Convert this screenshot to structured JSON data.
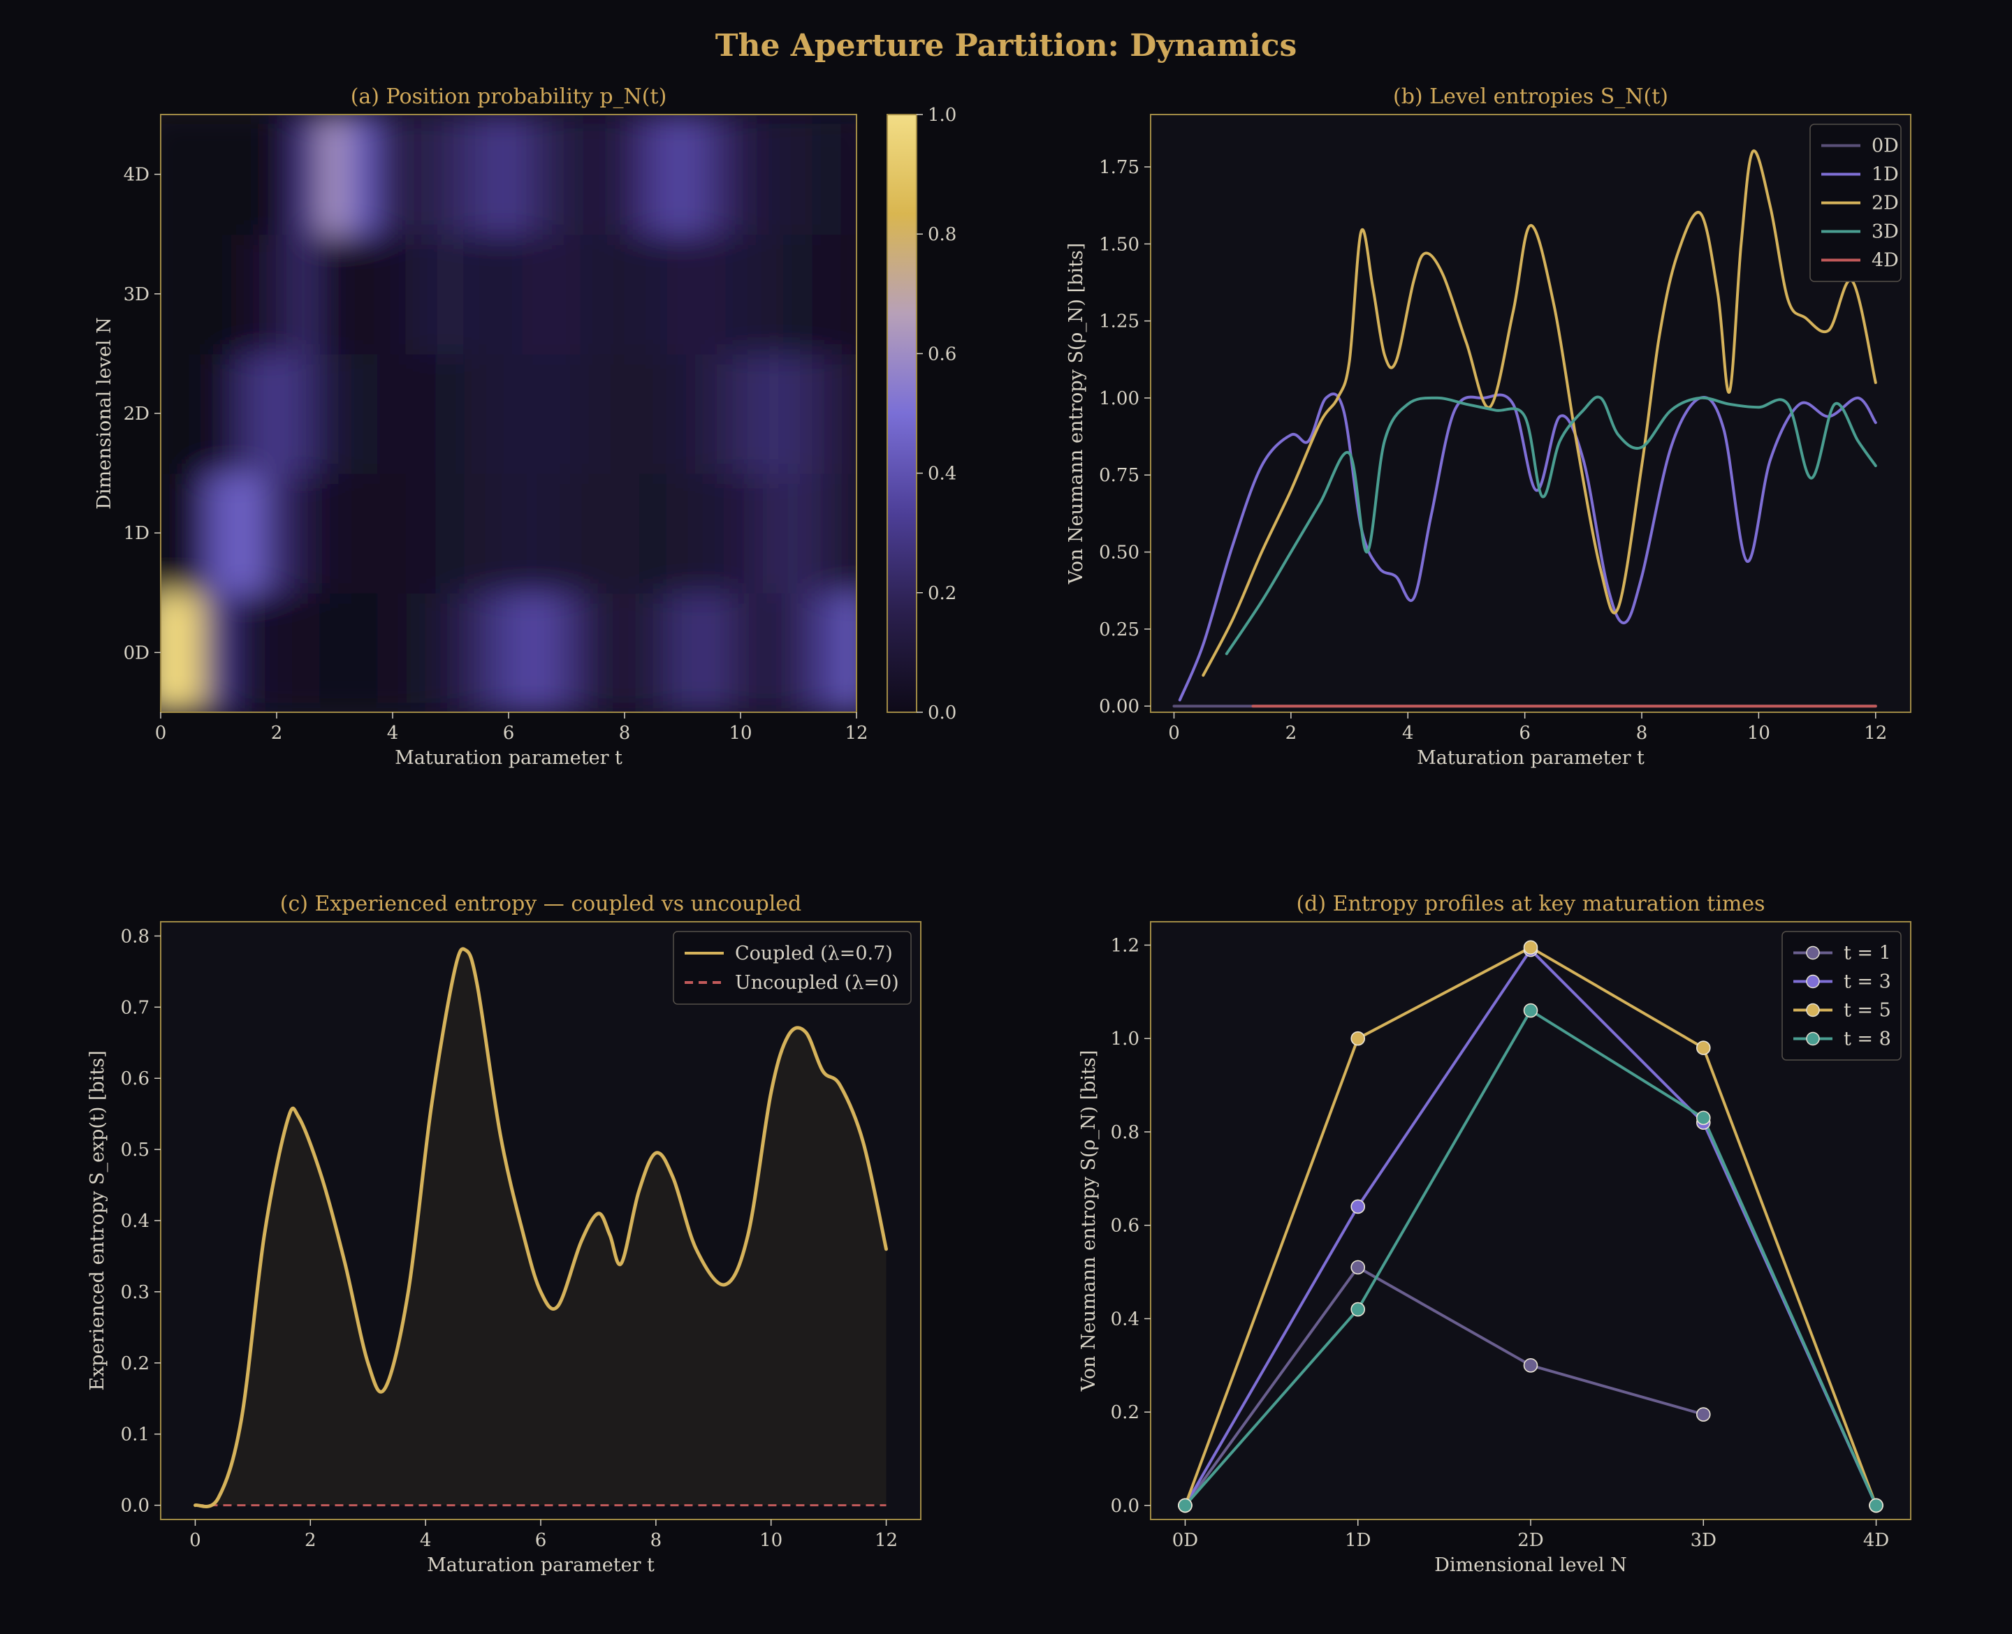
{
  "figure_title": "The Aperture Partition: Dynamics",
  "colors": {
    "background": "#0b0b10",
    "panel": "#0f0f17",
    "frame": "#a08a45",
    "title": "#d1a95a",
    "text": "#d8d3c6",
    "gold": "#d6b35b",
    "purple": "#7f6fd6",
    "purple_dim": "#6a5f8f",
    "teal": "#4a9e91",
    "red": "#c25a5a",
    "fill_dark": "#1d1b1b"
  },
  "chart_data": [
    {
      "id": "a",
      "type": "heatmap",
      "title": "(a)  Position probability  p_N(t)",
      "xlabel": "Maturation parameter  t",
      "ylabel": "Dimensional level  N",
      "xlim": [
        0,
        12
      ],
      "x_ticks": [
        "0",
        "2",
        "4",
        "6",
        "8",
        "10",
        "12"
      ],
      "y_categories": [
        "0D",
        "1D",
        "2D",
        "3D",
        "4D"
      ],
      "colorbar": {
        "range": [
          0,
          1
        ],
        "ticks": [
          "0.0",
          "0.2",
          "0.4",
          "0.6",
          "0.8",
          "1.0"
        ]
      },
      "colormap": [
        "#0e0a18",
        "#2a1f4d",
        "#4d3f98",
        "#7a6fd6",
        "#b7a0b8",
        "#d9b650",
        "#f2dd86"
      ],
      "grid_t": [
        0,
        0.5,
        1,
        1.5,
        2,
        2.5,
        3,
        3.5,
        4,
        4.5,
        5,
        5.5,
        6,
        6.5,
        7,
        7.5,
        8,
        8.5,
        9,
        9.5,
        10,
        10.5,
        11,
        11.5,
        12
      ],
      "values": [
        [
          1.0,
          0.95,
          0.3,
          0.1,
          0.04,
          0.03,
          0.02,
          0.02,
          0.03,
          0.06,
          0.12,
          0.22,
          0.32,
          0.36,
          0.28,
          0.14,
          0.08,
          0.14,
          0.24,
          0.26,
          0.18,
          0.12,
          0.2,
          0.32,
          0.42
        ],
        [
          0.0,
          0.05,
          0.4,
          0.46,
          0.26,
          0.12,
          0.05,
          0.03,
          0.03,
          0.04,
          0.06,
          0.07,
          0.09,
          0.1,
          0.08,
          0.07,
          0.07,
          0.06,
          0.07,
          0.09,
          0.12,
          0.18,
          0.2,
          0.14,
          0.08
        ],
        [
          0.0,
          0.0,
          0.04,
          0.24,
          0.3,
          0.24,
          0.1,
          0.06,
          0.05,
          0.05,
          0.06,
          0.08,
          0.1,
          0.1,
          0.1,
          0.08,
          0.07,
          0.07,
          0.1,
          0.14,
          0.2,
          0.24,
          0.22,
          0.16,
          0.08
        ],
        [
          0.0,
          0.0,
          0.0,
          0.03,
          0.12,
          0.22,
          0.04,
          0.03,
          0.05,
          0.1,
          0.13,
          0.1,
          0.1,
          0.12,
          0.12,
          0.09,
          0.08,
          0.1,
          0.12,
          0.12,
          0.1,
          0.08,
          0.06,
          0.05,
          0.03
        ],
        [
          0.0,
          0.0,
          0.0,
          0.0,
          0.03,
          0.28,
          0.62,
          0.42,
          0.18,
          0.14,
          0.2,
          0.26,
          0.3,
          0.22,
          0.14,
          0.1,
          0.16,
          0.3,
          0.36,
          0.28,
          0.16,
          0.1,
          0.08,
          0.06,
          0.05
        ]
      ]
    },
    {
      "id": "b",
      "type": "line",
      "title": "(b)  Level entropies  S_N(t)",
      "xlabel": "Maturation parameter  t",
      "ylabel": "Von Neumann entropy  S(ρ_N)  [bits]",
      "xlim": [
        -0.4,
        12.6
      ],
      "ylim": [
        -0.02,
        1.92
      ],
      "x_ticks": [
        0,
        2,
        4,
        6,
        8,
        10,
        12
      ],
      "y_ticks": [
        "0.00",
        "0.25",
        "0.50",
        "0.75",
        "1.00",
        "1.25",
        "1.50",
        "1.75"
      ],
      "legend_position": "top-right",
      "series": [
        {
          "name": "0D",
          "color": "#5a5078",
          "points": [
            [
              0,
              0
            ],
            [
              12,
              0
            ]
          ]
        },
        {
          "name": "1D",
          "color": "#7f6fd6",
          "points": [
            [
              0.1,
              0.02
            ],
            [
              0.5,
              0.2
            ],
            [
              1,
              0.52
            ],
            [
              1.5,
              0.78
            ],
            [
              2,
              0.88
            ],
            [
              2.3,
              0.86
            ],
            [
              2.6,
              1.0
            ],
            [
              2.9,
              0.96
            ],
            [
              3.2,
              0.58
            ],
            [
              3.5,
              0.45
            ],
            [
              3.8,
              0.42
            ],
            [
              4.1,
              0.35
            ],
            [
              4.4,
              0.62
            ],
            [
              4.8,
              0.96
            ],
            [
              5.3,
              1.0
            ],
            [
              5.8,
              0.98
            ],
            [
              6.2,
              0.7
            ],
            [
              6.6,
              0.94
            ],
            [
              7.0,
              0.8
            ],
            [
              7.4,
              0.4
            ],
            [
              7.7,
              0.27
            ],
            [
              8.0,
              0.42
            ],
            [
              8.5,
              0.84
            ],
            [
              9.0,
              1.0
            ],
            [
              9.4,
              0.9
            ],
            [
              9.8,
              0.47
            ],
            [
              10.2,
              0.8
            ],
            [
              10.7,
              0.98
            ],
            [
              11.2,
              0.94
            ],
            [
              11.7,
              1.0
            ],
            [
              12,
              0.92
            ]
          ]
        },
        {
          "name": "2D",
          "color": "#d6b35b",
          "points": [
            [
              0.5,
              0.1
            ],
            [
              1,
              0.28
            ],
            [
              1.5,
              0.5
            ],
            [
              2,
              0.7
            ],
            [
              2.5,
              0.92
            ],
            [
              2.8,
              1.0
            ],
            [
              3.0,
              1.12
            ],
            [
              3.2,
              1.54
            ],
            [
              3.4,
              1.36
            ],
            [
              3.6,
              1.14
            ],
            [
              3.8,
              1.12
            ],
            [
              4.1,
              1.38
            ],
            [
              4.3,
              1.47
            ],
            [
              4.6,
              1.4
            ],
            [
              5.0,
              1.18
            ],
            [
              5.4,
              0.97
            ],
            [
              5.8,
              1.28
            ],
            [
              6.1,
              1.56
            ],
            [
              6.5,
              1.3
            ],
            [
              6.9,
              0.84
            ],
            [
              7.3,
              0.44
            ],
            [
              7.6,
              0.32
            ],
            [
              8.0,
              0.78
            ],
            [
              8.3,
              1.2
            ],
            [
              8.6,
              1.46
            ],
            [
              9.0,
              1.6
            ],
            [
              9.3,
              1.34
            ],
            [
              9.5,
              1.02
            ],
            [
              9.7,
              1.5
            ],
            [
              9.9,
              1.8
            ],
            [
              10.2,
              1.62
            ],
            [
              10.5,
              1.32
            ],
            [
              10.8,
              1.26
            ],
            [
              11.2,
              1.22
            ],
            [
              11.6,
              1.38
            ],
            [
              12,
              1.05
            ]
          ]
        },
        {
          "name": "3D",
          "color": "#4a9e91",
          "points": [
            [
              0.9,
              0.17
            ],
            [
              1.5,
              0.34
            ],
            [
              2,
              0.5
            ],
            [
              2.5,
              0.66
            ],
            [
              3.0,
              0.82
            ],
            [
              3.3,
              0.5
            ],
            [
              3.6,
              0.86
            ],
            [
              4.0,
              0.98
            ],
            [
              4.5,
              1.0
            ],
            [
              5.0,
              0.98
            ],
            [
              5.5,
              0.96
            ],
            [
              6.0,
              0.94
            ],
            [
              6.3,
              0.68
            ],
            [
              6.6,
              0.86
            ],
            [
              7.0,
              0.96
            ],
            [
              7.3,
              1.0
            ],
            [
              7.6,
              0.88
            ],
            [
              8.0,
              0.84
            ],
            [
              8.5,
              0.96
            ],
            [
              9.0,
              1.0
            ],
            [
              9.5,
              0.98
            ],
            [
              10.0,
              0.97
            ],
            [
              10.5,
              0.98
            ],
            [
              10.9,
              0.74
            ],
            [
              11.3,
              0.98
            ],
            [
              11.7,
              0.86
            ],
            [
              12,
              0.78
            ]
          ]
        },
        {
          "name": "4D",
          "color": "#c25a5a",
          "points": [
            [
              1.35,
              0
            ],
            [
              12,
              0
            ]
          ]
        }
      ]
    },
    {
      "id": "c",
      "type": "area",
      "title": "(c)  Experienced entropy — coupled vs uncoupled",
      "xlabel": "Maturation parameter  t",
      "ylabel": "Experienced entropy  S_exp(t)  [bits]",
      "xlim": [
        -0.6,
        12.6
      ],
      "ylim": [
        -0.02,
        0.82
      ],
      "x_ticks": [
        0,
        2,
        4,
        6,
        8,
        10,
        12
      ],
      "y_ticks": [
        "0.0",
        "0.1",
        "0.2",
        "0.3",
        "0.4",
        "0.5",
        "0.6",
        "0.7",
        "0.8"
      ],
      "legend_position": "top-right",
      "series": [
        {
          "name": "Coupled (λ=0.7)",
          "color": "#d6b35b",
          "style": "solid",
          "points": [
            [
              0,
              0
            ],
            [
              0.4,
              0.01
            ],
            [
              0.8,
              0.12
            ],
            [
              1.2,
              0.38
            ],
            [
              1.6,
              0.54
            ],
            [
              1.8,
              0.545
            ],
            [
              2.2,
              0.46
            ],
            [
              2.6,
              0.34
            ],
            [
              3.0,
              0.2
            ],
            [
              3.3,
              0.165
            ],
            [
              3.7,
              0.3
            ],
            [
              4.1,
              0.56
            ],
            [
              4.5,
              0.75
            ],
            [
              4.7,
              0.78
            ],
            [
              4.9,
              0.73
            ],
            [
              5.3,
              0.52
            ],
            [
              5.7,
              0.38
            ],
            [
              6.0,
              0.3
            ],
            [
              6.3,
              0.28
            ],
            [
              6.7,
              0.37
            ],
            [
              7.0,
              0.41
            ],
            [
              7.2,
              0.38
            ],
            [
              7.4,
              0.34
            ],
            [
              7.7,
              0.44
            ],
            [
              8.0,
              0.495
            ],
            [
              8.3,
              0.46
            ],
            [
              8.7,
              0.36
            ],
            [
              9.2,
              0.31
            ],
            [
              9.6,
              0.38
            ],
            [
              10.0,
              0.58
            ],
            [
              10.3,
              0.66
            ],
            [
              10.6,
              0.665
            ],
            [
              10.9,
              0.61
            ],
            [
              11.2,
              0.59
            ],
            [
              11.6,
              0.51
            ],
            [
              12,
              0.36
            ]
          ]
        },
        {
          "name": "Uncoupled (λ=0)",
          "color": "#c25a5a",
          "style": "dashed",
          "points": [
            [
              0,
              0
            ],
            [
              12,
              0
            ]
          ]
        }
      ]
    },
    {
      "id": "d",
      "type": "line",
      "title": "(d)  Entropy profiles at key maturation times",
      "xlabel": "Dimensional level  N",
      "ylabel": "Von Neumann entropy  S(ρ_N)  [bits]",
      "categories": [
        "0D",
        "1D",
        "2D",
        "3D",
        "4D"
      ],
      "ylim": [
        -0.03,
        1.25
      ],
      "y_ticks": [
        "0.0",
        "0.2",
        "0.4",
        "0.6",
        "0.8",
        "1.0",
        "1.2"
      ],
      "legend_position": "top-right",
      "series": [
        {
          "name": "t = 1",
          "color": "#6a5f8f",
          "values": [
            0.0,
            0.51,
            0.3,
            0.195,
            null
          ]
        },
        {
          "name": "t = 3",
          "color": "#7f6fd6",
          "values": [
            0.0,
            0.64,
            1.19,
            0.82,
            0.0
          ]
        },
        {
          "name": "t = 5",
          "color": "#d6b35b",
          "values": [
            0.0,
            1.0,
            1.195,
            0.98,
            0.0
          ]
        },
        {
          "name": "t = 8",
          "color": "#4a9e91",
          "values": [
            0.0,
            0.42,
            1.06,
            0.83,
            0.0
          ]
        }
      ]
    }
  ]
}
